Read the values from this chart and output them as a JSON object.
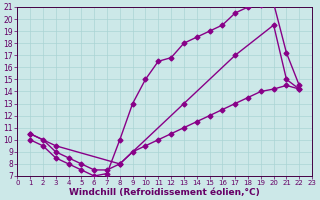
{
  "xlabel": "Windchill (Refroidissement éolien,°C)",
  "xlim": [
    0,
    23
  ],
  "ylim": [
    7,
    21
  ],
  "xticks": [
    0,
    1,
    2,
    3,
    4,
    5,
    6,
    7,
    8,
    9,
    10,
    11,
    12,
    13,
    14,
    15,
    16,
    17,
    18,
    19,
    20,
    21,
    22,
    23
  ],
  "yticks": [
    7,
    8,
    9,
    10,
    11,
    12,
    13,
    14,
    15,
    16,
    17,
    18,
    19,
    20,
    21
  ],
  "bg_color": "#cce8e8",
  "line_color": "#880088",
  "line1_x": [
    1,
    2,
    3,
    4,
    5,
    6,
    7,
    8,
    9,
    10,
    11,
    12,
    13,
    14,
    15,
    16,
    17,
    18,
    19,
    20,
    21,
    22
  ],
  "line1_y": [
    10.5,
    10.0,
    9.0,
    8.5,
    8.0,
    7.5,
    7.5,
    8.0,
    9.0,
    9.5,
    10.0,
    10.5,
    11.0,
    11.5,
    12.0,
    12.5,
    13.0,
    13.5,
    14.0,
    14.2,
    14.5,
    14.2
  ],
  "line2_x": [
    1,
    2,
    3,
    4,
    5,
    6,
    7,
    8,
    9,
    10,
    11,
    12,
    13,
    14,
    15,
    16,
    17,
    18,
    19,
    20,
    21,
    22
  ],
  "line2_y": [
    10.0,
    9.5,
    8.5,
    8.0,
    7.5,
    7.0,
    7.2,
    10.0,
    13.0,
    15.0,
    16.5,
    16.8,
    18.0,
    18.5,
    19.0,
    19.5,
    20.5,
    21.0,
    21.2,
    21.3,
    17.2,
    14.5
  ],
  "line3_x": [
    1,
    3,
    8,
    13,
    17,
    20,
    21,
    22
  ],
  "line3_y": [
    10.5,
    9.5,
    8.0,
    13.0,
    17.0,
    19.5,
    15.0,
    14.2
  ],
  "marker": "D",
  "markersize": 2.5,
  "linewidth": 1.0,
  "fontsize_tick": 5.5,
  "fontsize_xlabel": 6.5,
  "grid_color": "#aad4d4",
  "tick_color": "#660066",
  "spine_color": "#440044"
}
